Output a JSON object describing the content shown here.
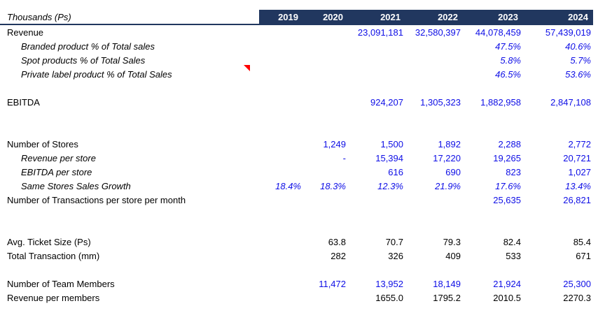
{
  "header": {
    "label": "Thousands (Ps)",
    "years": [
      "2019",
      "2020",
      "2021",
      "2022",
      "2023",
      "2024"
    ]
  },
  "colors": {
    "header_bg": "#21375F",
    "header_text": "#FFFFFF",
    "value_blue": "#0E0EE6",
    "value_black": "#000000",
    "comment_red": "#FF0000"
  },
  "icons": {
    "comment_indicator": "red-corner-triangle"
  },
  "rows": [
    {
      "type": "data",
      "key": "revenue",
      "label": "Revenue",
      "indent": false,
      "label_italic": false,
      "values_italic": false,
      "values_color": "blue",
      "values": [
        "",
        "",
        "23,091,181",
        "32,580,397",
        "44,078,459",
        "57,439,019"
      ]
    },
    {
      "type": "data",
      "key": "branded-product-pct",
      "label": "Branded product % of Total sales",
      "indent": true,
      "label_italic": true,
      "values_italic": true,
      "values_color": "blue",
      "values": [
        "",
        "",
        "",
        "",
        "47.5%",
        "40.6%"
      ]
    },
    {
      "type": "data",
      "key": "spot-products-pct",
      "label": "Spot products % of Total Sales",
      "indent": true,
      "label_italic": true,
      "values_italic": true,
      "values_color": "blue",
      "values": [
        "",
        "",
        "",
        "",
        "5.8%",
        "5.7%"
      ]
    },
    {
      "type": "data",
      "key": "private-label-pct",
      "label": "Private label product % of Total Sales",
      "indent": true,
      "label_italic": true,
      "values_italic": true,
      "values_color": "blue",
      "values": [
        "",
        "",
        "",
        "",
        "46.5%",
        "53.6%"
      ]
    },
    {
      "type": "spacer"
    },
    {
      "type": "data",
      "key": "ebitda",
      "label": "EBITDA",
      "indent": false,
      "label_italic": false,
      "values_italic": false,
      "values_color": "blue",
      "values": [
        "",
        "",
        "924,207",
        "1,305,323",
        "1,882,958",
        "2,847,108"
      ]
    },
    {
      "type": "spacer"
    },
    {
      "type": "spacer"
    },
    {
      "type": "data",
      "key": "number-of-stores",
      "label": "Number of Stores",
      "indent": false,
      "label_italic": false,
      "values_italic": false,
      "values_color": "blue",
      "values": [
        "",
        "1,249",
        "1,500",
        "1,892",
        "2,288",
        "2,772"
      ]
    },
    {
      "type": "data",
      "key": "revenue-per-store",
      "label": "Revenue per store",
      "indent": true,
      "label_italic": true,
      "values_italic": false,
      "values_color": "blue",
      "values": [
        "",
        "-",
        "15,394",
        "17,220",
        "19,265",
        "20,721"
      ]
    },
    {
      "type": "data",
      "key": "ebitda-per-store",
      "label": "EBITDA per store",
      "indent": true,
      "label_italic": true,
      "values_italic": false,
      "values_color": "blue",
      "values": [
        "",
        "",
        "616",
        "690",
        "823",
        "1,027"
      ]
    },
    {
      "type": "data",
      "key": "same-stores-sales-growth",
      "label": "Same Stores Sales Growth",
      "indent": true,
      "label_italic": true,
      "values_italic": true,
      "values_color": "blue",
      "values": [
        "18.4%",
        "18.3%",
        "12.3%",
        "21.9%",
        "17.6%",
        "13.4%"
      ]
    },
    {
      "type": "data",
      "key": "transactions-per-store-per-month",
      "label": "Number of Transactions per store per month",
      "indent": false,
      "label_italic": false,
      "values_italic": false,
      "values_color": "blue",
      "values": [
        "",
        "",
        "",
        "",
        "25,635",
        "26,821"
      ]
    },
    {
      "type": "spacer"
    },
    {
      "type": "spacer"
    },
    {
      "type": "data",
      "key": "avg-ticket-size",
      "label": "Avg. Ticket Size (Ps)",
      "indent": false,
      "label_italic": false,
      "values_italic": false,
      "values_color": "black",
      "values": [
        "",
        "63.8",
        "70.7",
        "79.3",
        "82.4",
        "85.4"
      ]
    },
    {
      "type": "data",
      "key": "total-transaction",
      "label": "Total Transaction (mm)",
      "indent": false,
      "label_italic": false,
      "values_italic": false,
      "values_color": "black",
      "values": [
        "",
        "282",
        "326",
        "409",
        "533",
        "671"
      ]
    },
    {
      "type": "spacer"
    },
    {
      "type": "data",
      "key": "number-of-team-members",
      "label": "Number of Team Members",
      "indent": false,
      "label_italic": false,
      "values_italic": false,
      "values_color": "blue",
      "values": [
        "",
        "11,472",
        "13,952",
        "18,149",
        "21,924",
        "25,300"
      ]
    },
    {
      "type": "data",
      "key": "revenue-per-members",
      "label": "Revenue per members",
      "indent": false,
      "label_italic": false,
      "values_italic": false,
      "values_color": "black",
      "values": [
        "",
        "",
        "1655.0",
        "1795.2",
        "2010.5",
        "2270.3"
      ]
    }
  ]
}
